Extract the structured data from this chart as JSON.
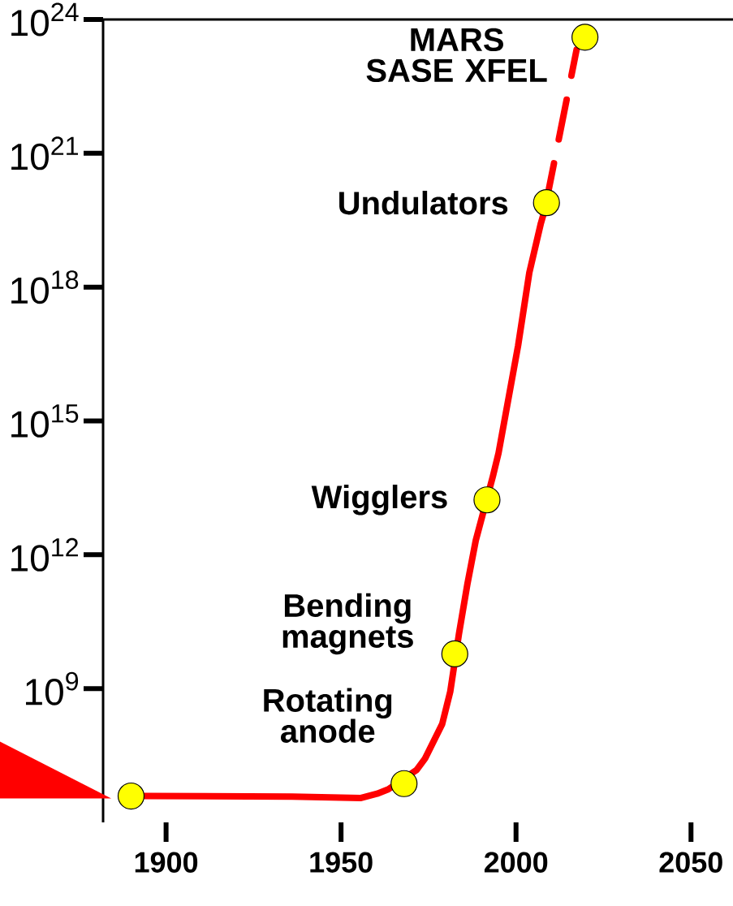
{
  "chart_data": {
    "type": "line",
    "series": [
      {
        "color": "#ff0000",
        "line_style": "solid",
        "marker": "none",
        "x": [
          1894,
          1936,
          1955.5,
          1960.3,
          1963.5,
          1971.6,
          1974,
          1978.9,
          1981.2,
          1983.7,
          1986.1,
          1988.5,
          1993.4,
          1995,
          2000.6,
          2003.8,
          2007.1,
          2007.7
        ],
        "values": [
          3900000.0,
          3800000.0,
          3500000.0,
          4400000.0,
          5500000.0,
          15000000.0,
          27000000.0,
          160000000.0,
          850000000.0,
          17000000000.0,
          220000000000.0,
          2100000000000.0,
          58000000000000.0,
          190000000000000.0,
          4.9e+16,
          2.1e+18,
          2.7e+19,
          3.9e+19
        ]
      },
      {
        "color": "#ff0000",
        "line_style": "dashed",
        "marker": "none",
        "x": [
          2009.4,
          2017.3
        ],
        "values": [
          1.6e+20,
          2.1e+23
        ]
      },
      {
        "type": "scatter",
        "color": "#ffff00",
        "marker": "circle",
        "x": [
          1890,
          1968,
          1982.5,
          1991.7,
          2008.7
        ],
        "values": [
          3900000.0,
          7400000.0,
          6000000000.0,
          17000000000000.0,
          7.8e+19
        ]
      },
      {
        "type": "scatter",
        "color": "#ffff00",
        "marker": "circle",
        "x": [
          2019.7
        ],
        "values": [
          4e+23
        ]
      }
    ],
    "xlim": [
      1882,
      2062
    ],
    "ylim": [
      1000000.0,
      1e+24
    ],
    "xticks": [
      1900,
      1950,
      2000,
      2050
    ],
    "yticks": [
      {
        "value": 1000000000.0,
        "label": "10$^{9}$"
      },
      {
        "value": 1000000000000.0,
        "label": "10$^{12}$"
      },
      {
        "value": 1000000000000000.0,
        "label": "10$^{15}$"
      },
      {
        "value": 1e+18,
        "label": "10$^{18}$"
      },
      {
        "value": 1e+21,
        "label": "10$^{21}$"
      },
      {
        "value": 1e+24,
        "label": "10$^{24}$"
      }
    ],
    "log": "y",
    "annotations": [
      {
        "text": "Rotating anode",
        "x": 1968,
        "y": 7400000.0
      },
      {
        "text": "Bending magnets",
        "x": 1982.5,
        "y": 6000000000.0
      },
      {
        "text": "Wigglers",
        "x": 1991.7,
        "y": 17000000000000.0
      },
      {
        "text": "Undulators",
        "x": 2008.7,
        "y": 7.8e+19
      },
      {
        "text": "MARS SASE XFEL",
        "x": 2019.7,
        "y": 4e+23
      }
    ]
  }
}
